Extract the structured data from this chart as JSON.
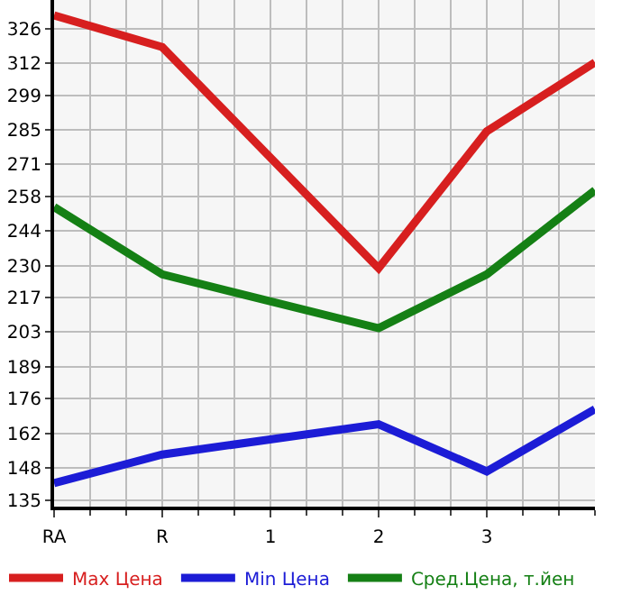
{
  "chart_data": {
    "type": "line",
    "categories": [
      "RA",
      "R",
      "1",
      "2",
      "3",
      null
    ],
    "series": [
      {
        "name": "Max Цена",
        "color": "#d71f1f",
        "values": [
          331.4,
          318.5,
          null,
          228.9,
          284.4,
          312.3
        ]
      },
      {
        "name": "Min Цена",
        "color": "#1c1cd6",
        "values": [
          141.8,
          153.4,
          null,
          165.7,
          146.6,
          171.8
        ]
      },
      {
        "name": "Сред.Цена, т.йен",
        "color": "#158015",
        "values": [
          253.7,
          226.4,
          null,
          204.6,
          226.4,
          260.5
        ]
      }
    ],
    "ylim": [
      132.3,
      337.6
    ],
    "yticks": [
      135,
      148,
      162,
      176,
      189,
      203,
      217,
      230,
      244,
      258,
      271,
      285,
      299,
      312,
      326
    ],
    "grid": true,
    "legend": "bottom",
    "marker": "none",
    "line_style": "solid"
  }
}
